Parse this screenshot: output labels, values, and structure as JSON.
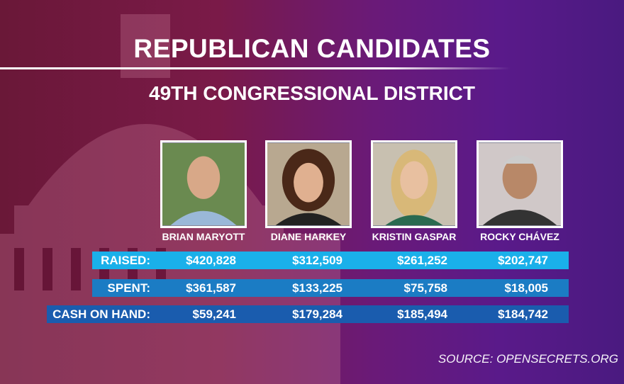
{
  "title": "REPUBLICAN CANDIDATES",
  "subtitle": "49TH CONGRESSIONAL DISTRICT",
  "candidates": [
    {
      "name": "BRIAN MARYOTT",
      "raised": "$420,828",
      "spent": "$361,587",
      "cash": "$59,241"
    },
    {
      "name": "DIANE HARKEY",
      "raised": "$312,509",
      "spent": "$133,225",
      "cash": "$179,284"
    },
    {
      "name": "KRISTIN GASPAR",
      "raised": "$261,252",
      "spent": "$75,758",
      "cash": "$185,494"
    },
    {
      "name": "ROCKY CHÁVEZ",
      "raised": "$202,747",
      "spent": "$18,005",
      "cash": "$184,742"
    }
  ],
  "rows": {
    "raised": "RAISED:",
    "spent": "SPENT:",
    "cash": "CASH ON HAND:"
  },
  "colors": {
    "raised": "#1ab0ea",
    "spent": "#1b7cc4",
    "cash": "#1a5cae"
  },
  "source": "SOURCE: OPENSECRETS.ORG"
}
